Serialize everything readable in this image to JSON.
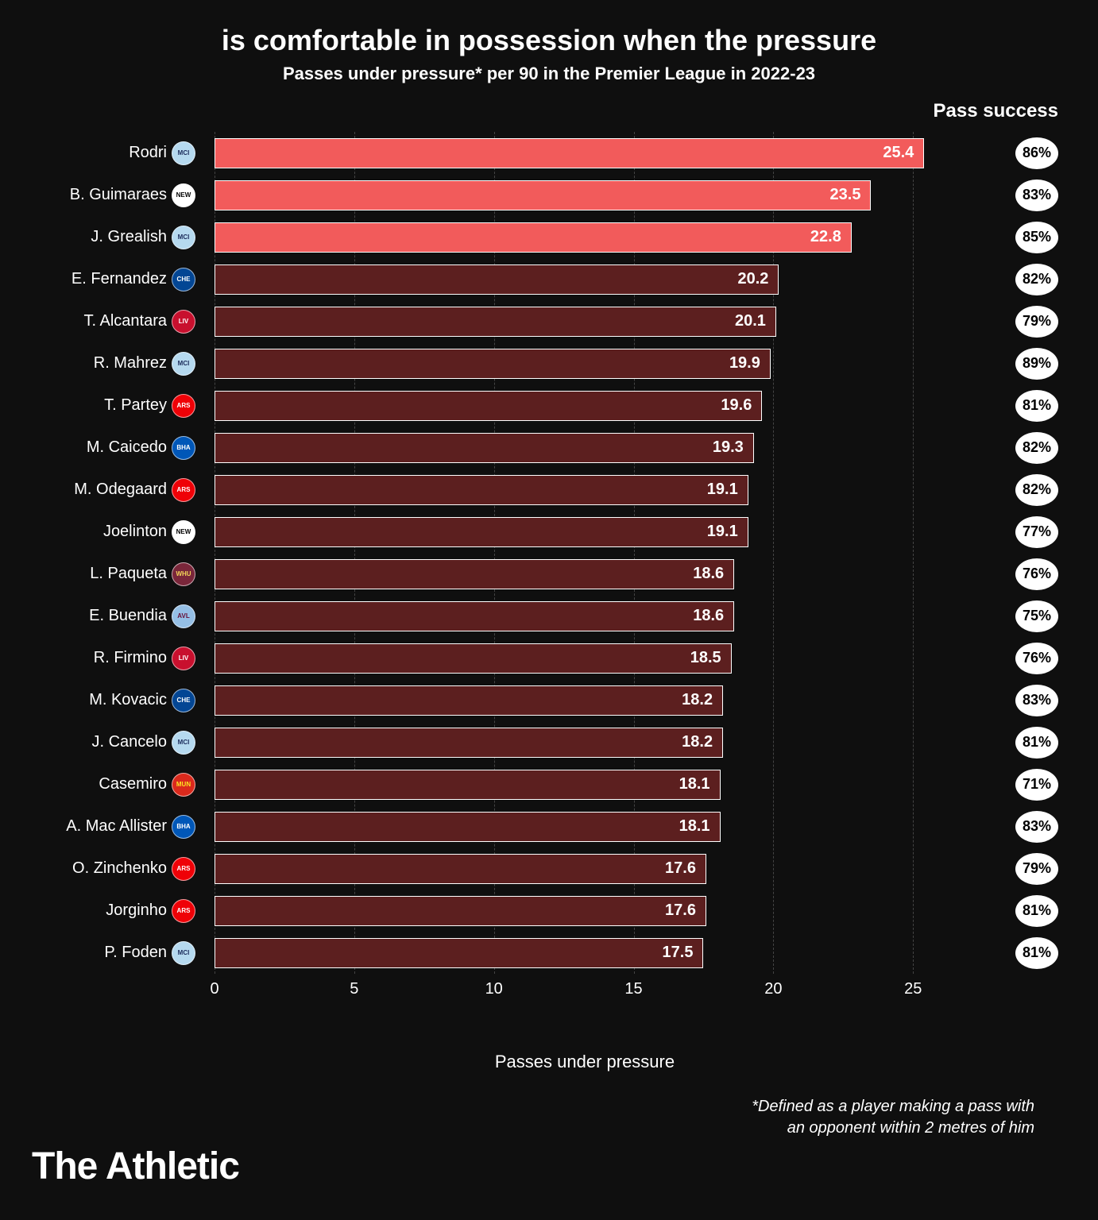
{
  "title": "is comfortable in possession when the pressure",
  "subtitle": "Passes under pressure* per 90 in the Premier League in 2022-23",
  "pass_success_header": "Pass success",
  "x_axis_label": "Passes under pressure",
  "footnote_line1": "*Defined as a player making a pass with",
  "footnote_line2": "an opponent within 2 metres of him",
  "brand": "The Athletic",
  "chart": {
    "type": "bar",
    "xlim": [
      0,
      26.5
    ],
    "xticks": [
      0,
      5,
      10,
      15,
      20,
      25
    ],
    "bar_border_color": "#ffffff",
    "grid_color": "#444444",
    "background_color": "#0f0f0f",
    "highlight_color": "#f25b5b",
    "normal_color": "#5c1f1f",
    "text_color": "#ffffff",
    "players": [
      {
        "name": "Rodri",
        "value": 25.4,
        "success": "86%",
        "highlight": true,
        "club": "MCI",
        "badge_bg": "#b5d9ef",
        "badge_fg": "#1c2c5b"
      },
      {
        "name": "B. Guimaraes",
        "value": 23.5,
        "success": "83%",
        "highlight": true,
        "club": "NEW",
        "badge_bg": "#ffffff",
        "badge_fg": "#000000"
      },
      {
        "name": "J. Grealish",
        "value": 22.8,
        "success": "85%",
        "highlight": true,
        "club": "MCI",
        "badge_bg": "#b5d9ef",
        "badge_fg": "#1c2c5b"
      },
      {
        "name": "E. Fernandez",
        "value": 20.2,
        "success": "82%",
        "highlight": false,
        "club": "CHE",
        "badge_bg": "#034694",
        "badge_fg": "#ffffff"
      },
      {
        "name": "T. Alcantara",
        "value": 20.1,
        "success": "79%",
        "highlight": false,
        "club": "LIV",
        "badge_bg": "#c8102e",
        "badge_fg": "#ffffff"
      },
      {
        "name": "R. Mahrez",
        "value": 19.9,
        "success": "89%",
        "highlight": false,
        "club": "MCI",
        "badge_bg": "#b5d9ef",
        "badge_fg": "#1c2c5b"
      },
      {
        "name": "T. Partey",
        "value": 19.6,
        "success": "81%",
        "highlight": false,
        "club": "ARS",
        "badge_bg": "#ef0107",
        "badge_fg": "#ffffff"
      },
      {
        "name": "M. Caicedo",
        "value": 19.3,
        "success": "82%",
        "highlight": false,
        "club": "BHA",
        "badge_bg": "#0057b8",
        "badge_fg": "#ffffff"
      },
      {
        "name": "M. Odegaard",
        "value": 19.1,
        "success": "82%",
        "highlight": false,
        "club": "ARS",
        "badge_bg": "#ef0107",
        "badge_fg": "#ffffff"
      },
      {
        "name": "Joelinton",
        "value": 19.1,
        "success": "77%",
        "highlight": false,
        "club": "NEW",
        "badge_bg": "#ffffff",
        "badge_fg": "#000000"
      },
      {
        "name": "L. Paqueta",
        "value": 18.6,
        "success": "76%",
        "highlight": false,
        "club": "WHU",
        "badge_bg": "#7a263a",
        "badge_fg": "#f3d459"
      },
      {
        "name": "E. Buendia",
        "value": 18.6,
        "success": "75%",
        "highlight": false,
        "club": "AVL",
        "badge_bg": "#95bfe5",
        "badge_fg": "#670e36"
      },
      {
        "name": "R. Firmino",
        "value": 18.5,
        "success": "76%",
        "highlight": false,
        "club": "LIV",
        "badge_bg": "#c8102e",
        "badge_fg": "#ffffff"
      },
      {
        "name": "M. Kovacic",
        "value": 18.2,
        "success": "83%",
        "highlight": false,
        "club": "CHE",
        "badge_bg": "#034694",
        "badge_fg": "#ffffff"
      },
      {
        "name": "J. Cancelo",
        "value": 18.2,
        "success": "81%",
        "highlight": false,
        "club": "MCI",
        "badge_bg": "#b5d9ef",
        "badge_fg": "#1c2c5b"
      },
      {
        "name": "Casemiro",
        "value": 18.1,
        "success": "71%",
        "highlight": false,
        "club": "MUN",
        "badge_bg": "#da291c",
        "badge_fg": "#fbe122"
      },
      {
        "name": "A. Mac Allister",
        "value": 18.1,
        "success": "83%",
        "highlight": false,
        "club": "BHA",
        "badge_bg": "#0057b8",
        "badge_fg": "#ffffff"
      },
      {
        "name": "O. Zinchenko",
        "value": 17.6,
        "success": "79%",
        "highlight": false,
        "club": "ARS",
        "badge_bg": "#ef0107",
        "badge_fg": "#ffffff"
      },
      {
        "name": "Jorginho",
        "value": 17.6,
        "success": "81%",
        "highlight": false,
        "club": "ARS",
        "badge_bg": "#ef0107",
        "badge_fg": "#ffffff"
      },
      {
        "name": "P. Foden",
        "value": 17.5,
        "success": "81%",
        "highlight": false,
        "club": "MCI",
        "badge_bg": "#b5d9ef",
        "badge_fg": "#1c2c5b"
      }
    ]
  }
}
